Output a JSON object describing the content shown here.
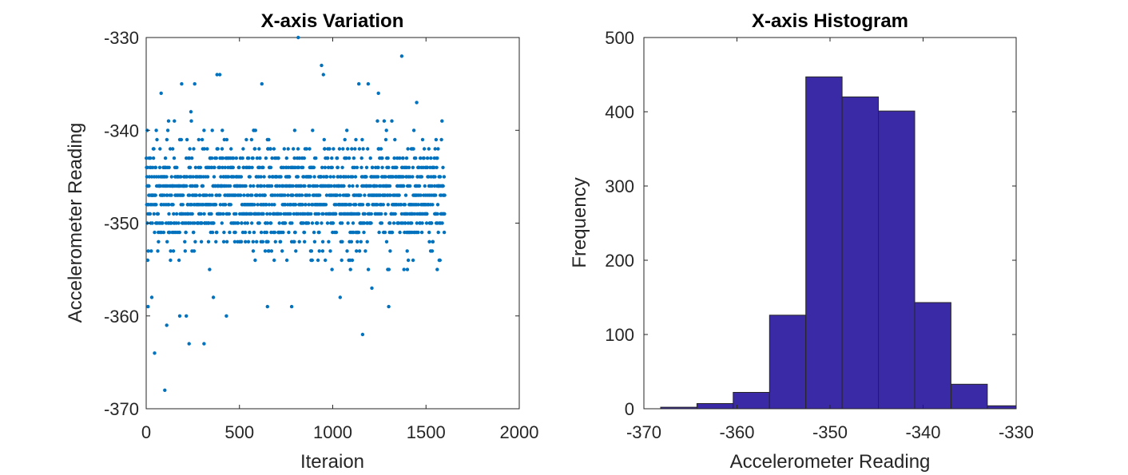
{
  "chart_data": [
    {
      "type": "scatter",
      "title": "X-axis Variation",
      "xlabel": "Iteraion",
      "ylabel": "Accelerometer Reading",
      "xlim": [
        0,
        2000
      ],
      "ylim": [
        -370,
        -330
      ],
      "xticks": [
        "0",
        "500",
        "1000",
        "1500",
        "2000"
      ],
      "yticks": [
        "-330",
        "-340",
        "-350",
        "-360",
        "-370"
      ],
      "grid": false,
      "marker_color": "#0072BD",
      "series": [
        {
          "n_points": 1600,
          "x_range": [
            1,
            1600
          ],
          "typical_range": [
            -355,
            -339
          ],
          "points": [
            [
              5,
              -340
            ],
            [
              8,
              -354
            ],
            [
              10,
              -359
            ],
            [
              30,
              -358
            ],
            [
              45,
              -364
            ],
            [
              80,
              -336
            ],
            [
              100,
              -368
            ],
            [
              110,
              -361
            ],
            [
              120,
              -339
            ],
            [
              180,
              -360
            ],
            [
              190,
              -335
            ],
            [
              215,
              -360
            ],
            [
              230,
              -363
            ],
            [
              240,
              -338
            ],
            [
              260,
              -335
            ],
            [
              310,
              -363
            ],
            [
              340,
              -355
            ],
            [
              360,
              -358
            ],
            [
              380,
              -334
            ],
            [
              395,
              -334
            ],
            [
              430,
              -360
            ],
            [
              620,
              -335
            ],
            [
              650,
              -359
            ],
            [
              780,
              -359
            ],
            [
              815,
              -330
            ],
            [
              940,
              -333
            ],
            [
              950,
              -334
            ],
            [
              1040,
              -358
            ],
            [
              1140,
              -335
            ],
            [
              1160,
              -362
            ],
            [
              1190,
              -335
            ],
            [
              1210,
              -357
            ],
            [
              1245,
              -336
            ],
            [
              1300,
              -359
            ],
            [
              1370,
              -332
            ],
            [
              1400,
              -355
            ],
            [
              1450,
              -337
            ],
            [
              1560,
              -355
            ]
          ]
        }
      ]
    },
    {
      "type": "bar",
      "title": "X-axis Histogram",
      "xlabel": "Accelerometer Reading",
      "ylabel": "Frequency",
      "xlim": [
        -370,
        -330
      ],
      "ylim": [
        0,
        500
      ],
      "xticks": [
        "-370",
        "-360",
        "-350",
        "-340",
        "-330"
      ],
      "yticks": [
        "0",
        "100",
        "200",
        "300",
        "400",
        "500"
      ],
      "grid": false,
      "bar_color": "#3A2AA6",
      "bin_edges": [
        -368.2,
        -364.3,
        -360.4,
        -356.5,
        -352.6,
        -348.7,
        -344.8,
        -340.9,
        -337.0,
        -333.1,
        -329.2
      ],
      "values": [
        2,
        7,
        22,
        126,
        447,
        420,
        401,
        143,
        33,
        4
      ]
    }
  ]
}
